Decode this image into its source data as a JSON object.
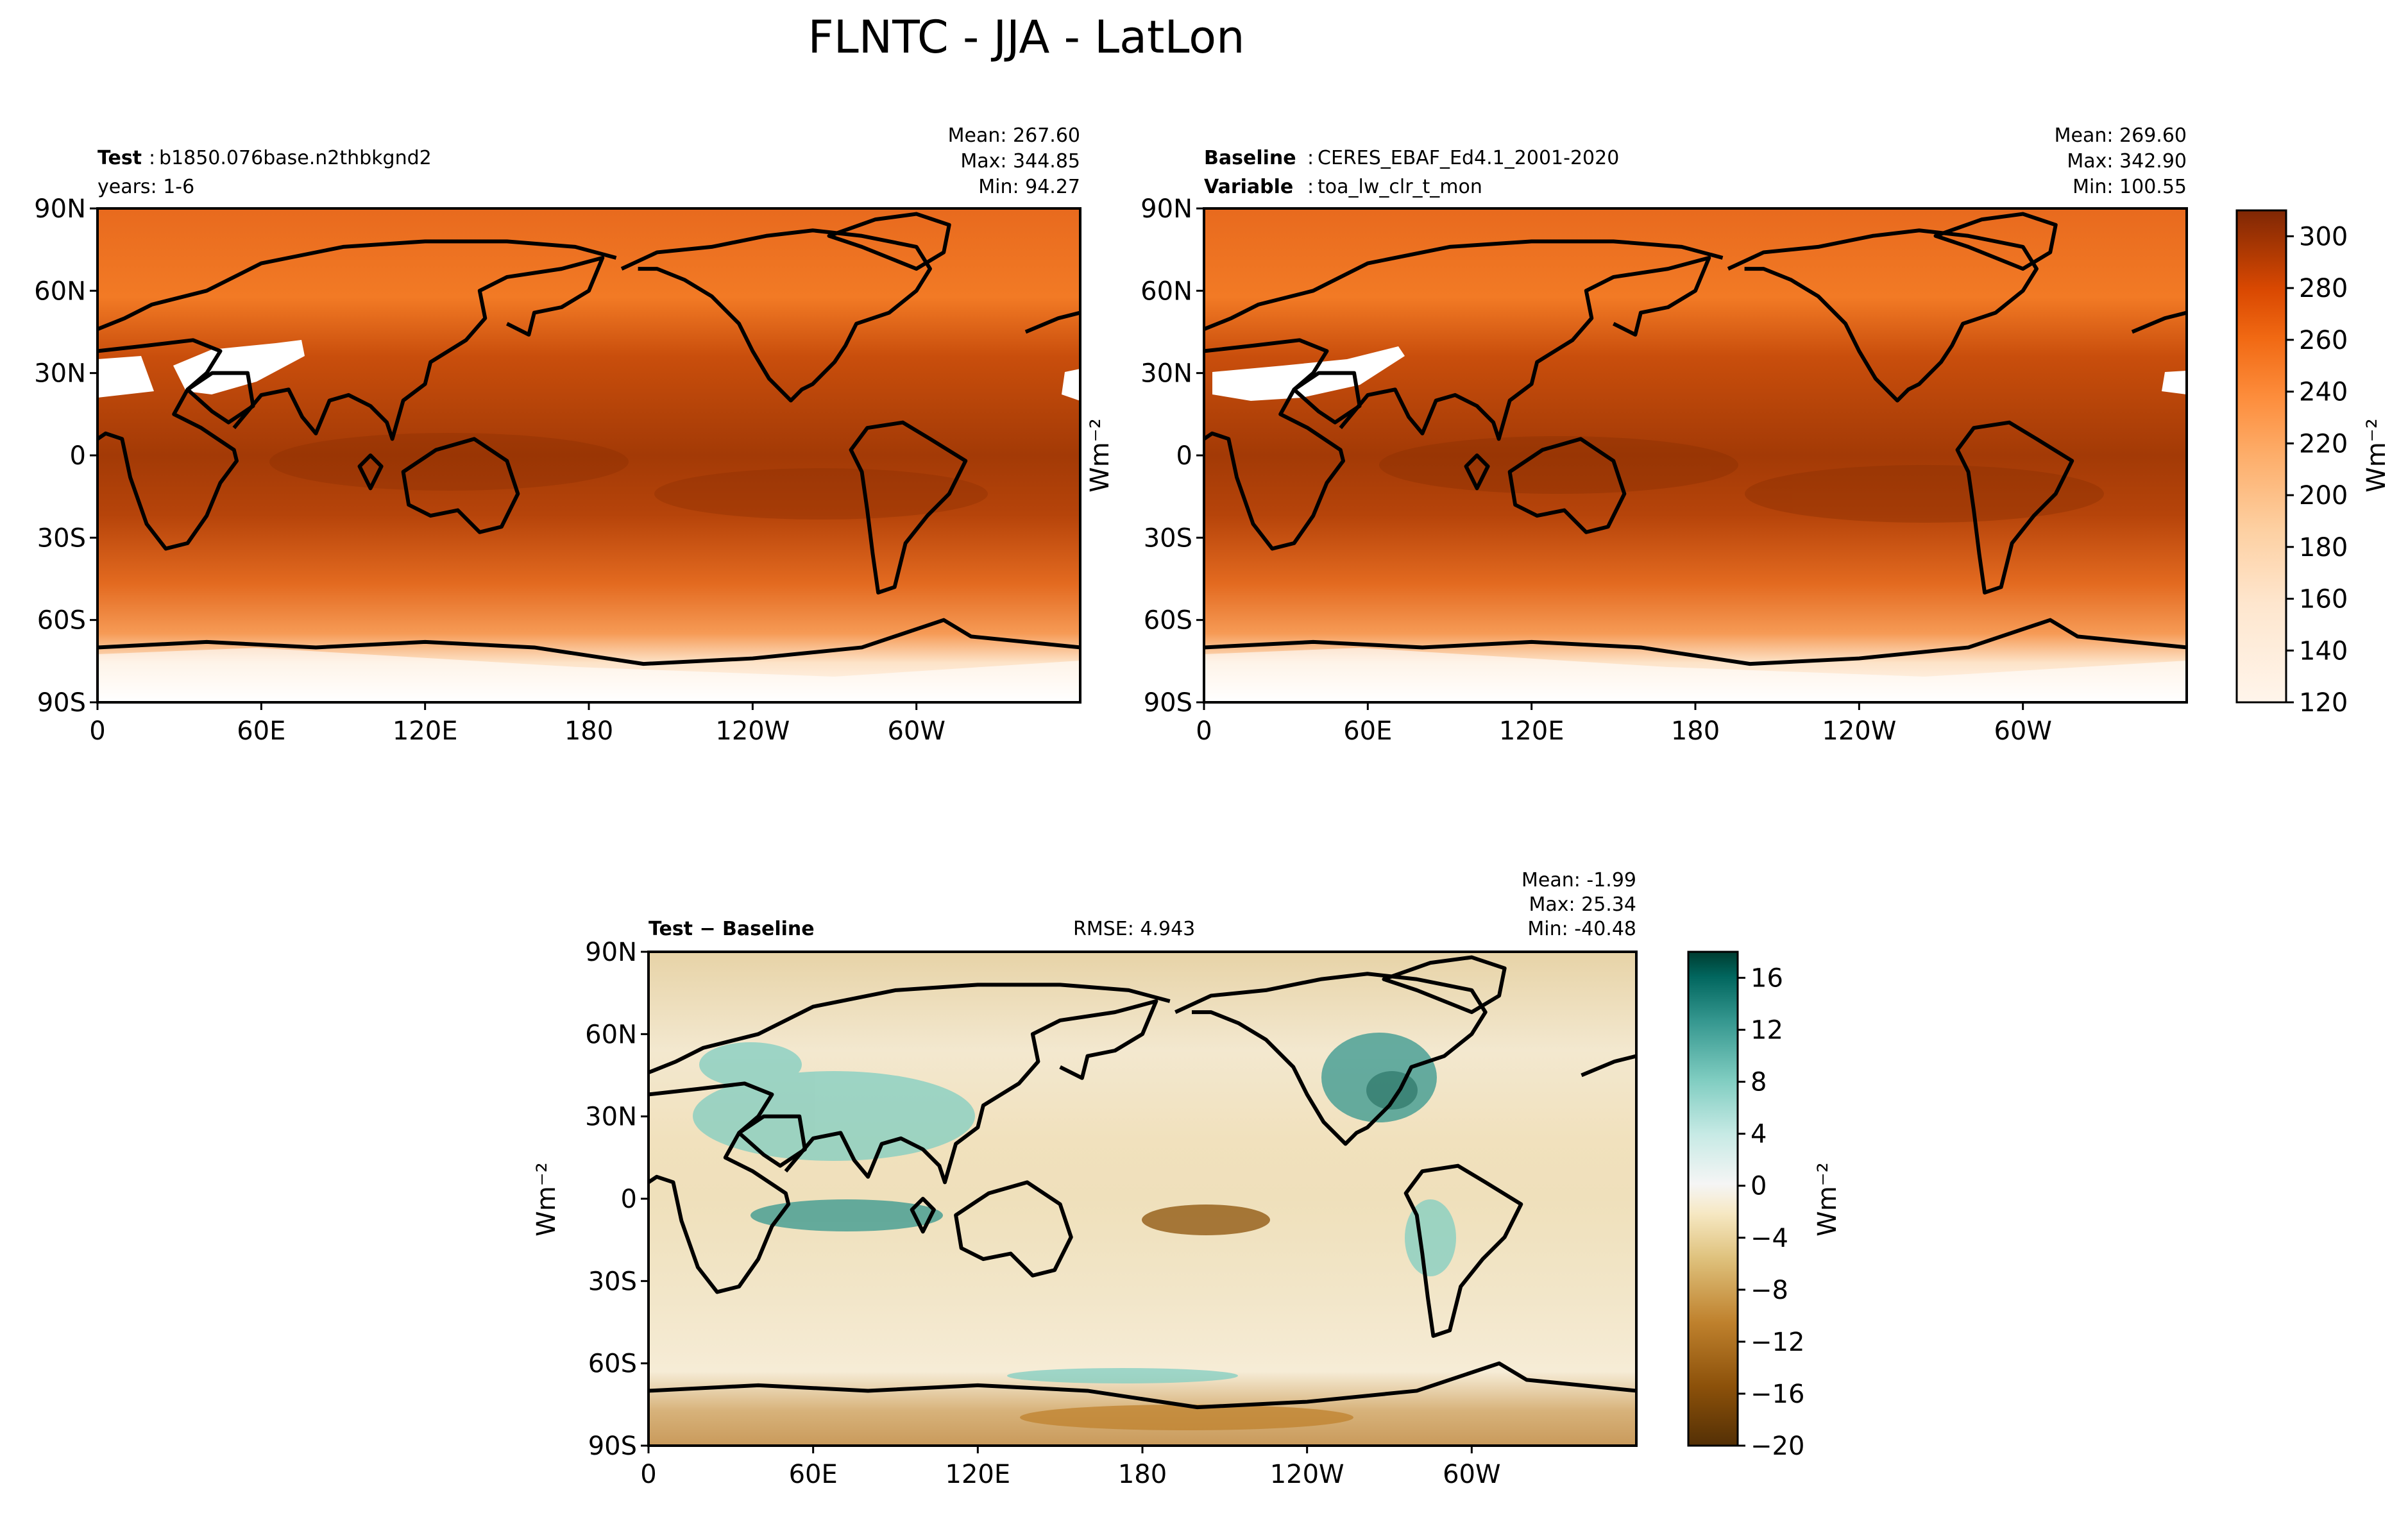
{
  "figure": {
    "title": "FLNTC - JJA - LatLon"
  },
  "chart_data": [
    {
      "type": "heatmap",
      "name": "test",
      "header": {
        "label1": "Test",
        "value1": "b1850.076base.n2thbkgnd2",
        "line2": "years: 1-6"
      },
      "stats": {
        "mean": "Mean: 267.60",
        "max": "Max: 344.85",
        "min": "Min: 94.27"
      },
      "xlabel": "",
      "ylabel": "",
      "xticks": [
        "0",
        "60E",
        "120E",
        "180",
        "120W",
        "60W"
      ],
      "yticks": [
        "90N",
        "60N",
        "30N",
        "0",
        "30S",
        "60S",
        "90S"
      ],
      "xlim": [
        0,
        360
      ],
      "ylim": [
        -90,
        90
      ],
      "data_range": [
        94.27,
        344.85
      ],
      "colormap": "Oranges (white to dark brown)"
    },
    {
      "type": "heatmap",
      "name": "baseline",
      "header": {
        "label1": "Baseline",
        "value1": "CERES_EBAF_Ed4.1_2001-2020",
        "label2": "Variable",
        "value2": "toa_lw_clr_t_mon"
      },
      "stats": {
        "mean": "Mean: 269.60",
        "max": "Max: 342.90",
        "min": "Min: 100.55"
      },
      "xlabel": "",
      "ylabel": "Wm⁻²",
      "xticks": [
        "0",
        "60E",
        "120E",
        "180",
        "120W",
        "60W"
      ],
      "yticks": [
        "90N",
        "60N",
        "30N",
        "0",
        "30S",
        "60S",
        "90S"
      ],
      "xlim": [
        0,
        360
      ],
      "ylim": [
        -90,
        90
      ],
      "data_range": [
        100.55,
        342.9
      ],
      "colorbar": {
        "ticks": [
          "300",
          "280",
          "260",
          "240",
          "220",
          "200",
          "180",
          "160",
          "140",
          "120"
        ],
        "range": [
          120,
          310
        ],
        "label": "Wm⁻²"
      }
    },
    {
      "type": "heatmap",
      "name": "difference",
      "header": {
        "label1": "Test − Baseline",
        "rmse": "RMSE: 4.943"
      },
      "stats": {
        "mean": "Mean: -1.99",
        "max": "Max: 25.34",
        "min": "Min: -40.48"
      },
      "xlabel": "",
      "ylabel": "Wm⁻²",
      "xticks": [
        "0",
        "60E",
        "120E",
        "180",
        "120W",
        "60W"
      ],
      "yticks": [
        "90N",
        "60N",
        "30N",
        "0",
        "30S",
        "60S",
        "90S"
      ],
      "xlim": [
        0,
        360
      ],
      "ylim": [
        -90,
        90
      ],
      "data_range": [
        -40.48,
        25.34
      ],
      "colorbar": {
        "ticks": [
          "16",
          "12",
          "8",
          "4",
          "0",
          "−4",
          "−8",
          "−12",
          "−16",
          "−20"
        ],
        "range": [
          -20,
          18
        ],
        "label": "Wm⁻²"
      }
    }
  ],
  "colors": {
    "test_scale": [
      "#fff5eb",
      "#fee6ce",
      "#fdd0a2",
      "#fdae6b",
      "#fd8d3c",
      "#f16913",
      "#d94801",
      "#a63603",
      "#7f2704"
    ],
    "diff_scale": [
      "#543005",
      "#8c510a",
      "#bf812d",
      "#dfc27d",
      "#f6e8c3",
      "#f5f5f5",
      "#c7eae5",
      "#80cdc1",
      "#35978f",
      "#01665e",
      "#003c30"
    ]
  }
}
